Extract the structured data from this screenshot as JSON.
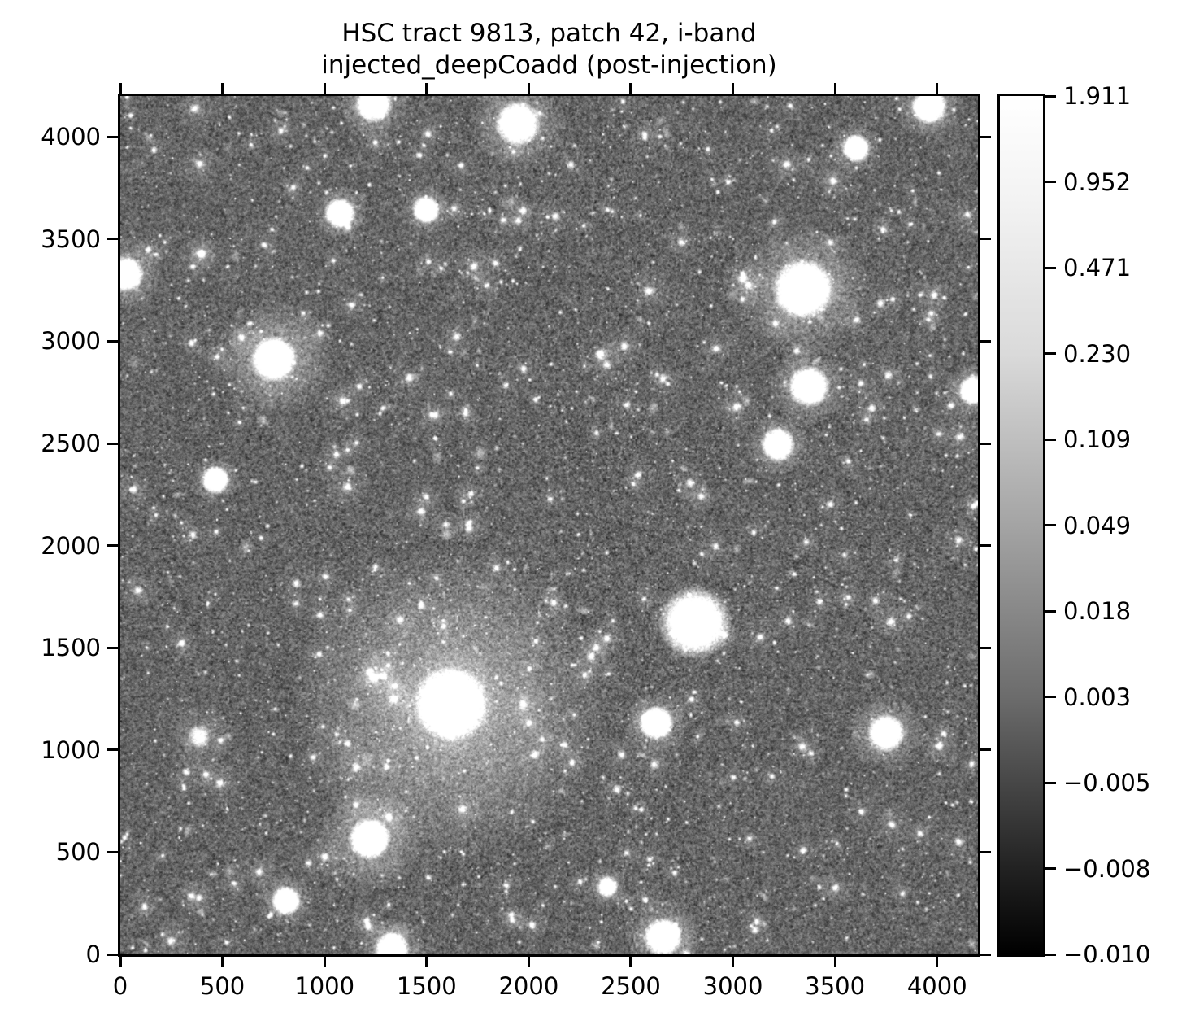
{
  "figure": {
    "title_line1": "HSC tract 9813, patch 42, i-band",
    "title_line2": "injected_deepCoadd (post-injection)",
    "background": "#ffffff",
    "axis_color": "#000000"
  },
  "chart_data": {
    "type": "heatmap",
    "title": "HSC tract 9813, patch 42, i-band\ninjected_deepCoadd (post-injection)",
    "xlabel": "",
    "ylabel": "",
    "xlim": [
      0,
      4200
    ],
    "ylim": [
      0,
      4200
    ],
    "x_ticks": [
      0,
      500,
      1000,
      1500,
      2000,
      2500,
      3000,
      3500,
      4000
    ],
    "y_ticks": [
      0,
      500,
      1000,
      1500,
      2000,
      2500,
      3000,
      3500,
      4000
    ],
    "grid": false,
    "legend": "none",
    "colorbar": {
      "cmap": "gray",
      "scale": "asinh",
      "vmin": -0.01,
      "vmax": 1.911,
      "tick_labels": [
        "1.911",
        "0.952",
        "0.471",
        "0.230",
        "0.109",
        "0.049",
        "0.018",
        "0.003",
        "−0.005",
        "−0.008",
        "−0.010"
      ]
    },
    "image": {
      "description": "grayscale deep-coadd star field with injected sources, cluster of bright stars and galaxies on noisy sky background",
      "background_mean": 0.4,
      "background_noise": 0.14,
      "seed": 9813,
      "n_faint_stars": 3200,
      "n_small_stars": 950,
      "n_medium_stars": 300,
      "n_galaxies": 170,
      "bright_objects": [
        {
          "x": 1620,
          "y": 1226,
          "core": 100,
          "halo": 780,
          "peak": 1.0
        },
        {
          "x": 752,
          "y": 2914,
          "core": 62,
          "halo": 290,
          "peak": 1.0
        },
        {
          "x": 3344,
          "y": 3256,
          "core": 82,
          "halo": 330,
          "peak": 1.0
        },
        {
          "x": 2814,
          "y": 1624,
          "core": 95,
          "halo": 215,
          "peak": 0.95
        },
        {
          "x": 3372,
          "y": 2779,
          "core": 56,
          "halo": 195,
          "peak": 1.0
        },
        {
          "x": 3220,
          "y": 2496,
          "core": 46,
          "halo": 155,
          "peak": 1.0
        },
        {
          "x": 1946,
          "y": 4065,
          "core": 60,
          "halo": 235,
          "peak": 1.0
        },
        {
          "x": 3602,
          "y": 3945,
          "core": 38,
          "halo": 125,
          "peak": 1.0
        },
        {
          "x": 1222,
          "y": 565,
          "core": 56,
          "halo": 265,
          "peak": 1.0
        },
        {
          "x": 2655,
          "y": 84,
          "core": 52,
          "halo": 195,
          "peak": 1.0
        },
        {
          "x": 2627,
          "y": 1131,
          "core": 46,
          "halo": 165,
          "peak": 1.0
        },
        {
          "x": 3750,
          "y": 1083,
          "core": 50,
          "halo": 190,
          "peak": 1.0
        },
        {
          "x": 466,
          "y": 2321,
          "core": 38,
          "halo": 120,
          "peak": 1.0
        },
        {
          "x": 1075,
          "y": 3627,
          "core": 42,
          "halo": 135,
          "peak": 1.0
        },
        {
          "x": 1497,
          "y": 3643,
          "core": 38,
          "halo": 125,
          "peak": 1.0
        },
        {
          "x": 386,
          "y": 1067,
          "core": 32,
          "halo": 160,
          "peak": 0.5
        },
        {
          "x": 3961,
          "y": 4148,
          "core": 48,
          "halo": 170,
          "peak": 1.0
        },
        {
          "x": 812,
          "y": 263,
          "core": 40,
          "halo": 135,
          "peak": 1.0
        },
        {
          "x": 1330,
          "y": 24,
          "core": 48,
          "halo": 165,
          "peak": 1.0
        },
        {
          "x": 28,
          "y": 3328,
          "core": 48,
          "halo": 185,
          "peak": 1.0
        },
        {
          "x": 4176,
          "y": 2759,
          "core": 40,
          "halo": 135,
          "peak": 1.0
        },
        {
          "x": 1240,
          "y": 4160,
          "core": 50,
          "halo": 175,
          "peak": 1.0
        },
        {
          "x": 2385,
          "y": 330,
          "core": 30,
          "halo": 105,
          "peak": 0.8
        }
      ]
    }
  }
}
